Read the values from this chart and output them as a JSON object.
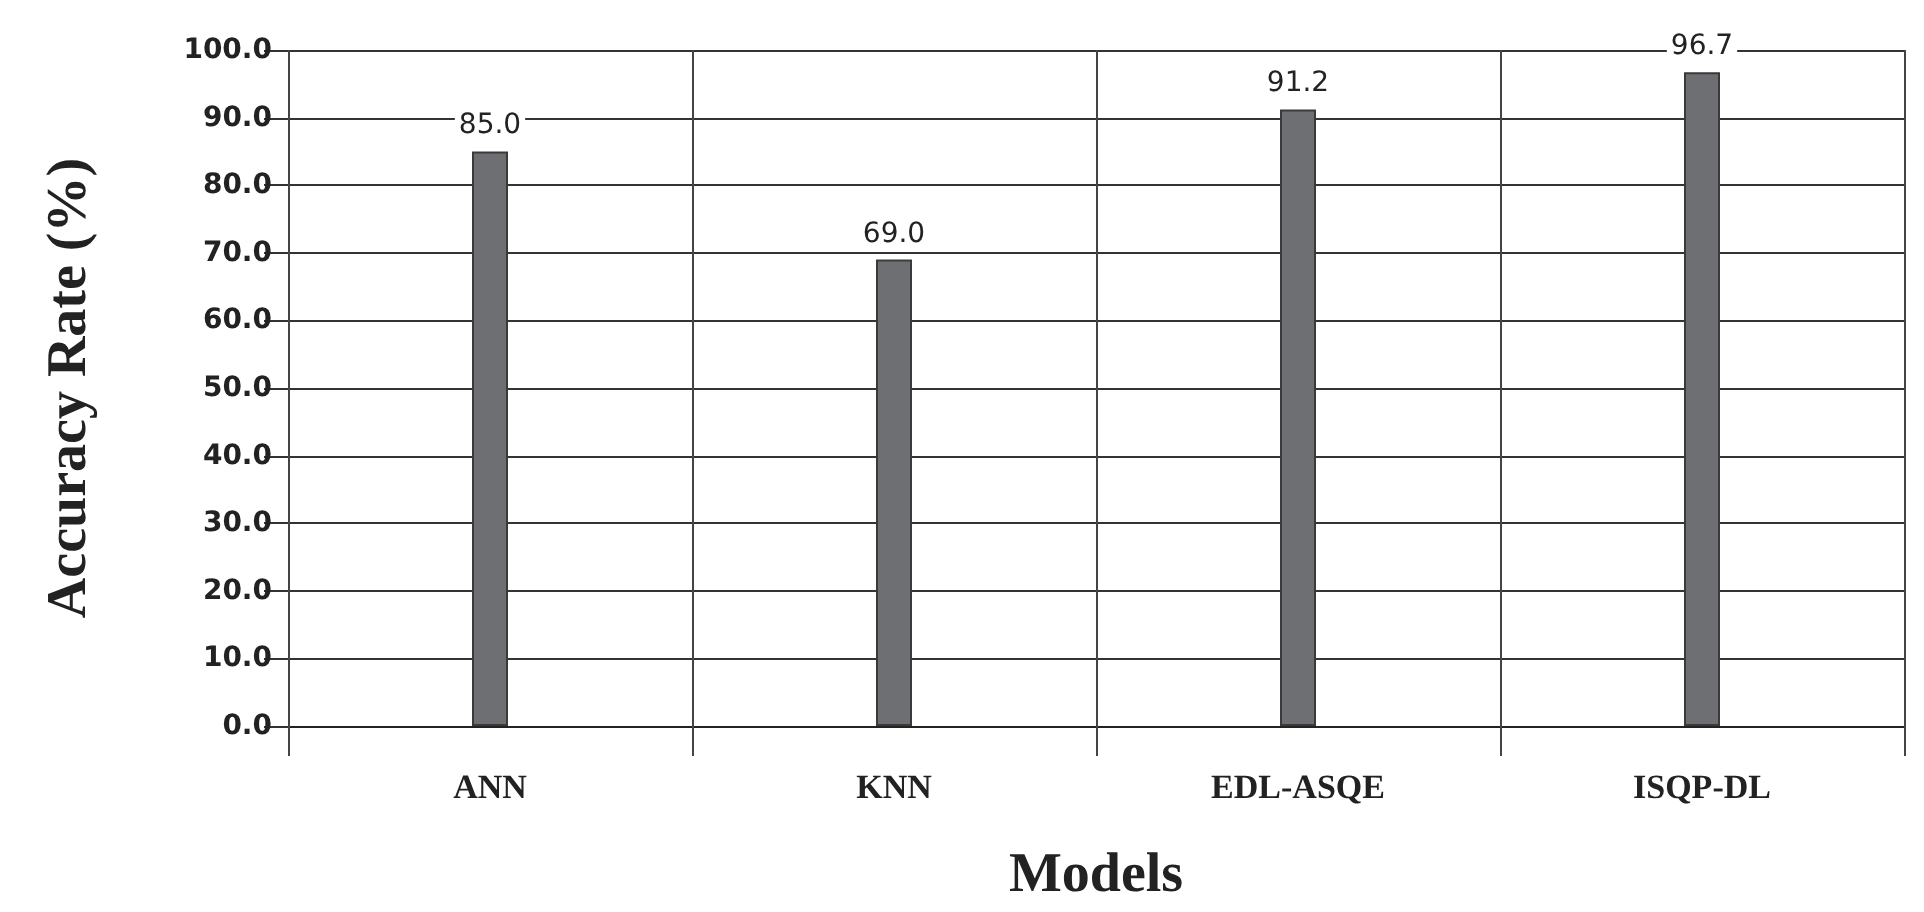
{
  "chart_data": {
    "type": "bar",
    "xlabel": "Models",
    "ylabel": "Accuracy Rate (%)",
    "categories": [
      "ANN",
      "KNN",
      "EDL-ASQE",
      "ISQP-DL"
    ],
    "values": [
      85.0,
      69.0,
      91.2,
      96.7
    ],
    "value_labels": [
      "85.0",
      "69.0",
      "91.2",
      "96.7"
    ],
    "color": "#6e6f73",
    "ylim": [
      0,
      100
    ],
    "yticks": [
      {
        "value": 0,
        "label": "0.0"
      },
      {
        "value": 10,
        "label": "10.0"
      },
      {
        "value": 20,
        "label": "20.0"
      },
      {
        "value": 30,
        "label": "30.0"
      },
      {
        "value": 40,
        "label": "40.0"
      },
      {
        "value": 50,
        "label": "50.0"
      },
      {
        "value": 60,
        "label": "60.0"
      },
      {
        "value": 70,
        "label": "70.0"
      },
      {
        "value": 80,
        "label": "80.0"
      },
      {
        "value": 90,
        "label": "90.0"
      },
      {
        "value": 100,
        "label": "100.0"
      }
    ],
    "grid": true
  }
}
